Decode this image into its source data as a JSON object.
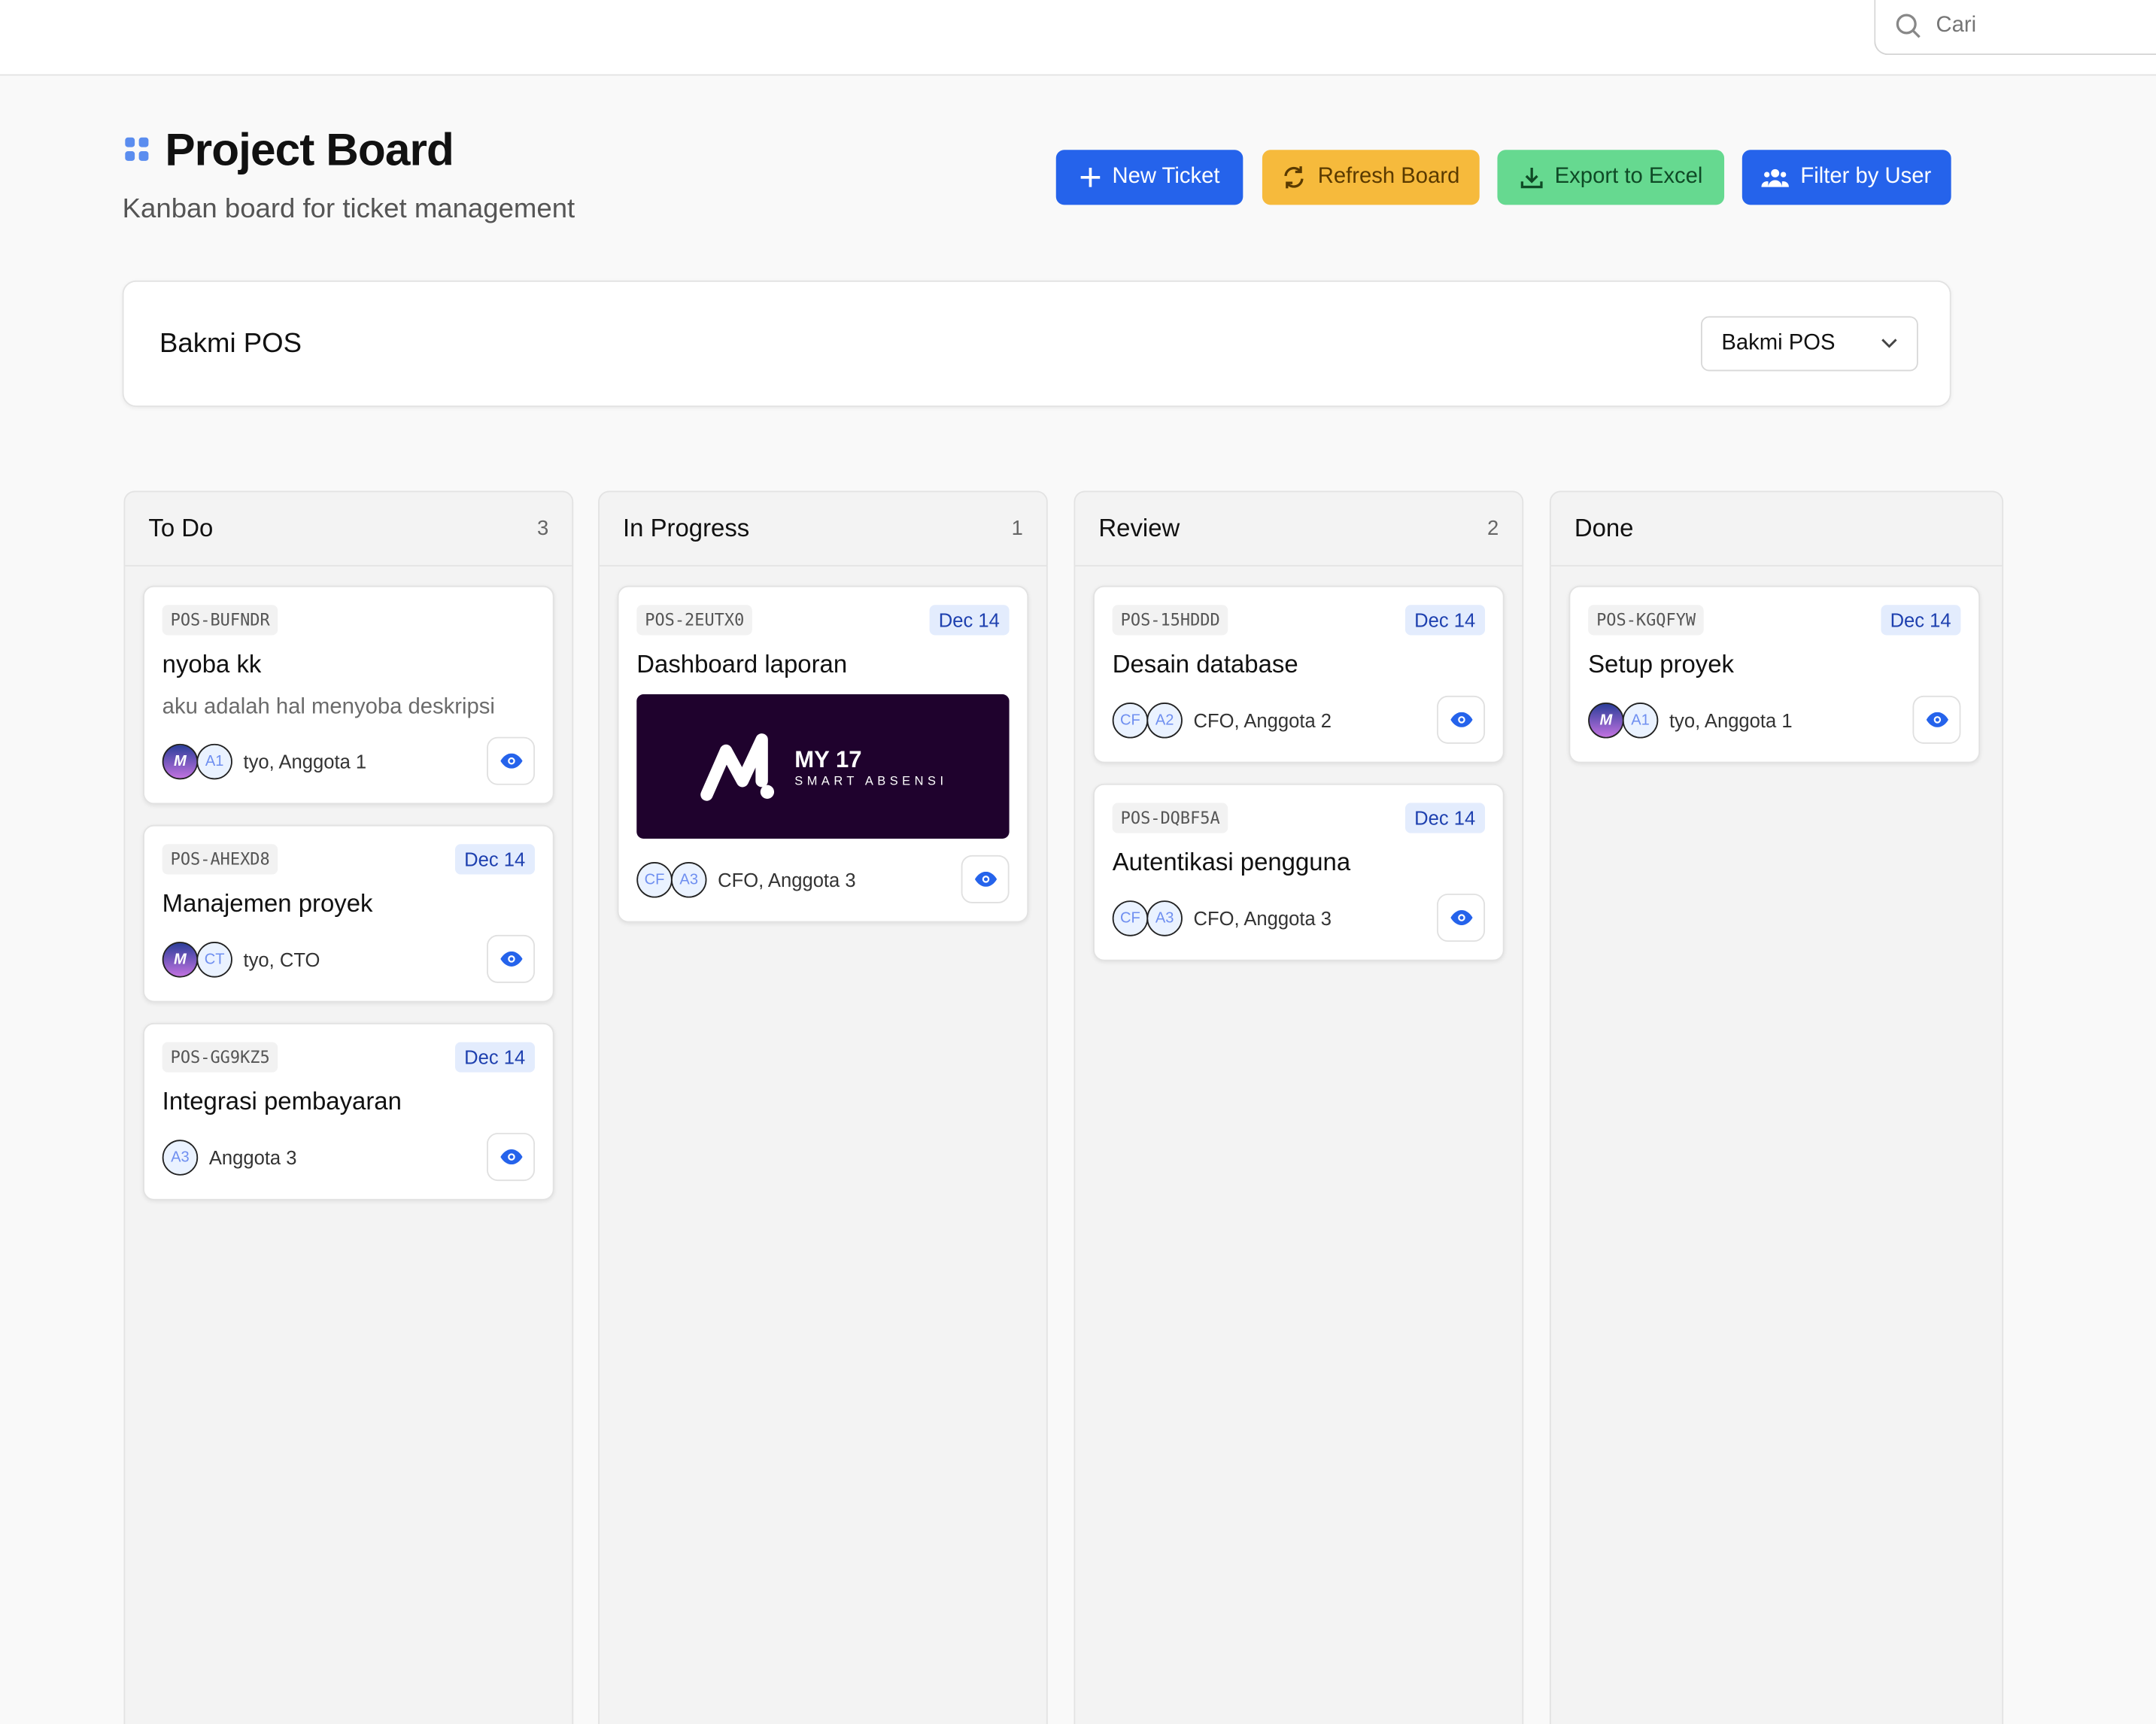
{
  "search": {
    "placeholder": "Cari"
  },
  "header": {
    "title": "Project Board",
    "subtitle": "Kanban board for ticket management"
  },
  "toolbar": {
    "new_ticket": "New Ticket",
    "refresh": "Refresh Board",
    "export": "Export to Excel",
    "filter": "Filter by User"
  },
  "colors": {
    "primary": "#2563eb",
    "warning": "#f6ba3c",
    "success": "#66d990",
    "image_bg": "#1f022d"
  },
  "project": {
    "name": "Bakmi POS",
    "selected": "Bakmi POS"
  },
  "columns": [
    {
      "title": "To Do",
      "count": "3",
      "cards": [
        {
          "code": "POS-BUFNDR",
          "title": "nyoba kk",
          "desc": "aku adalah hal menyoba deskripsi",
          "avatars": [
            "logo",
            "A1"
          ],
          "people": "tyo, Anggota 1"
        },
        {
          "code": "POS-AHEXD8",
          "date": "Dec 14",
          "title": "Manajemen proyek",
          "avatars": [
            "logo",
            "CT"
          ],
          "people": "tyo, CTO"
        },
        {
          "code": "POS-GG9KZ5",
          "date": "Dec 14",
          "title": "Integrasi pembayaran",
          "avatars": [
            "A3"
          ],
          "people": "Anggota 3"
        }
      ]
    },
    {
      "title": "In Progress",
      "count": "1",
      "cards": [
        {
          "code": "POS-2EUTX0",
          "date": "Dec 14",
          "title": "Dashboard laporan",
          "image": {
            "brand": "MY 17",
            "tagline": "SMART ABSENSI"
          },
          "avatars": [
            "CF",
            "A3"
          ],
          "people": "CFO, Anggota 3"
        }
      ]
    },
    {
      "title": "Review",
      "count": "2",
      "cards": [
        {
          "code": "POS-15HDDD",
          "date": "Dec 14",
          "title": "Desain database",
          "avatars": [
            "CF",
            "A2"
          ],
          "people": "CFO, Anggota 2"
        },
        {
          "code": "POS-DQBF5A",
          "date": "Dec 14",
          "title": "Autentikasi pengguna",
          "avatars": [
            "CF",
            "A3"
          ],
          "people": "CFO, Anggota 3"
        }
      ]
    },
    {
      "title": "Done",
      "count": "",
      "cards": [
        {
          "code": "POS-KGQFYW",
          "date": "Dec 14",
          "title": "Setup proyek",
          "avatars": [
            "logo",
            "A1"
          ],
          "people": "tyo, Anggota 1"
        }
      ]
    }
  ]
}
